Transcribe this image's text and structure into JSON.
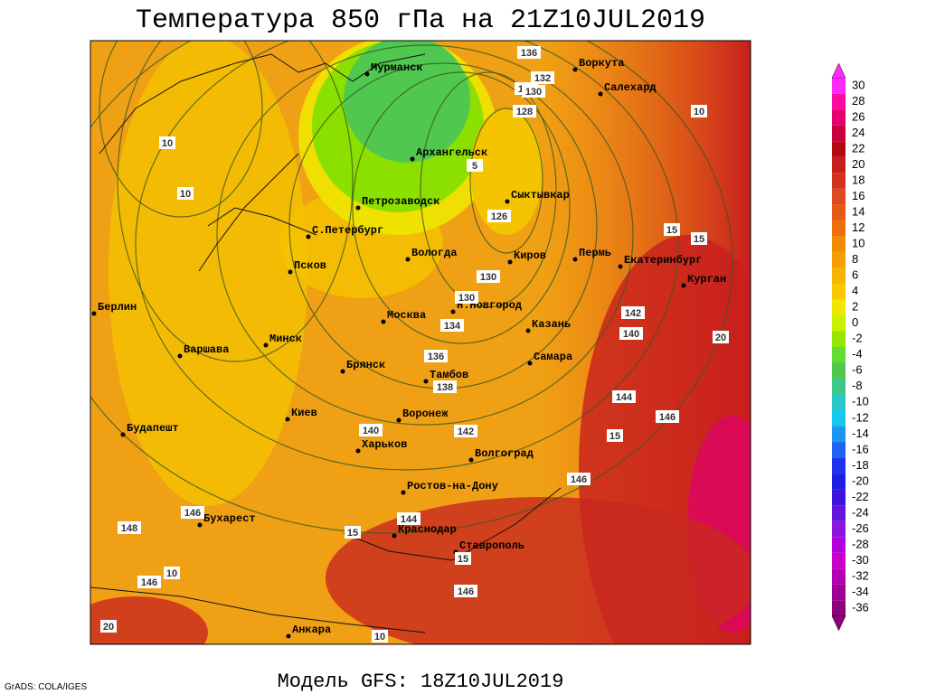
{
  "header": {
    "title": "Температура 850 гПа на 21Z10JUL2019"
  },
  "footer": {
    "model": "Модель GFS: 18Z10JUL2019",
    "credit": "GrADS: COLA/IGES"
  },
  "map": {
    "cities": [
      "Мурманск",
      "Воркута",
      "Салехард",
      "Архангельск",
      "Сыктывкар",
      "Петрозаводск",
      "С.Петербург",
      "Вологда",
      "Киров",
      "Пермь",
      "Екатеринбург",
      "Курган",
      "Псков",
      "Берлин",
      "Н.Новгород",
      "Москва",
      "Казань",
      "Варшава",
      "Минск",
      "Брянск",
      "Самара",
      "Тамбов",
      "Киев",
      "Воронеж",
      "Будапешт",
      "Харьков",
      "Волгоград",
      "Ростов-на-Дону",
      "Бухарест",
      "Краснодар",
      "Ставрополь",
      "Анкара"
    ],
    "contour_labels": [
      "136",
      "134",
      "132",
      "130",
      "128",
      "126",
      "130",
      "130",
      "134",
      "136",
      "138",
      "140",
      "142",
      "144",
      "146",
      "144",
      "146",
      "146",
      "148",
      "146",
      "142",
      "140",
      "146"
    ],
    "temperature_labels": [
      "10",
      "10",
      "10",
      "5",
      "15",
      "15",
      "20",
      "15",
      "15",
      "10",
      "10",
      "15",
      "20"
    ]
  },
  "colorbar": {
    "levels": [
      30,
      28,
      26,
      24,
      22,
      20,
      18,
      16,
      14,
      12,
      10,
      8,
      6,
      4,
      2,
      0,
      -2,
      -4,
      -6,
      -8,
      -10,
      -12,
      -14,
      -16,
      -18,
      -20,
      -22,
      -24,
      -26,
      -28,
      -30,
      -32,
      -34,
      -36
    ],
    "colors": [
      "#ff28ff",
      "#ff0aa0",
      "#e6006e",
      "#c8003c",
      "#b40a14",
      "#c81e1e",
      "#d2321e",
      "#dc4a1e",
      "#e65a14",
      "#f06e0a",
      "#f08c00",
      "#f5a000",
      "#f5b400",
      "#fac800",
      "#f0e600",
      "#c8f000",
      "#96e600",
      "#64dc32",
      "#50c850",
      "#3cc88c",
      "#28c8c8",
      "#14c8f0",
      "#1e96f0",
      "#1e64f0",
      "#1e32f0",
      "#1e1ee6",
      "#3c14dc",
      "#6414dc",
      "#8c14dc",
      "#b400dc",
      "#c800c8",
      "#b400b4",
      "#a00096",
      "#8c0078"
    ]
  }
}
